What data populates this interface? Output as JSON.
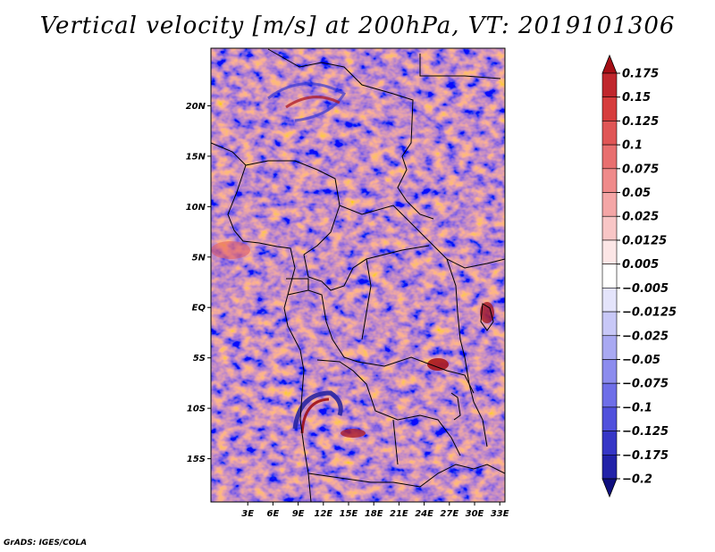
{
  "title": "Vertical velocity [m/s] at 200hPa, VT: 2019101306",
  "credit": "GrADS: IGES/COLA",
  "map": {
    "lon_range": [
      0,
      35
    ],
    "lat_range": [
      -20,
      25
    ],
    "lat_ticks": [
      {
        "value": 20,
        "label": "20N"
      },
      {
        "value": 15,
        "label": "15N"
      },
      {
        "value": 10,
        "label": "10N"
      },
      {
        "value": 5,
        "label": "5N"
      },
      {
        "value": 0,
        "label": "EQ"
      },
      {
        "value": -5,
        "label": "5S"
      },
      {
        "value": -10,
        "label": "10S"
      },
      {
        "value": -15,
        "label": "15S"
      }
    ],
    "lon_ticks": [
      {
        "value": 3,
        "label": "3E"
      },
      {
        "value": 6,
        "label": "6E"
      },
      {
        "value": 9,
        "label": "9E"
      },
      {
        "value": 12,
        "label": "12E"
      },
      {
        "value": 15,
        "label": "15E"
      },
      {
        "value": 18,
        "label": "18E"
      },
      {
        "value": 21,
        "label": "21E"
      },
      {
        "value": 24,
        "label": "24E"
      },
      {
        "value": 27,
        "label": "27E"
      },
      {
        "value": 30,
        "label": "30E"
      },
      {
        "value": 33,
        "label": "33E"
      }
    ]
  },
  "colorbar": {
    "levels": [
      "0.175",
      "0.15",
      "0.125",
      "0.1",
      "0.075",
      "0.05",
      "0.025",
      "0.0125",
      "0.005",
      "−0.005",
      "−0.0125",
      "−0.025",
      "−0.05",
      "−0.075",
      "−0.1",
      "−0.125",
      "−0.175",
      "−0.2"
    ],
    "colors": [
      "#a50f15",
      "#c0272d",
      "#d63d3d",
      "#e05656",
      "#e86f6f",
      "#ef8a8a",
      "#f4a6a6",
      "#f8c6c6",
      "#fce6e6",
      "#ffffff",
      "#e4e4fb",
      "#c8c8f7",
      "#a9a9f2",
      "#8c8cee",
      "#6e6ee8",
      "#5050dc",
      "#3636c6",
      "#2222a8",
      "#0f0f7f"
    ]
  }
}
